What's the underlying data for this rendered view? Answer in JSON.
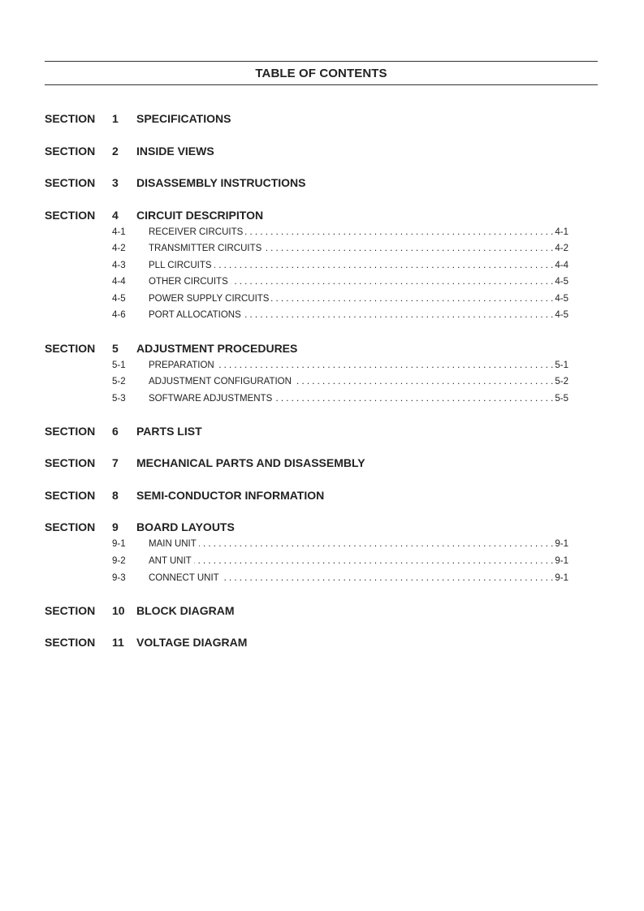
{
  "title": "TABLE OF CONTENTS",
  "section_word": "SECTION",
  "sections": [
    {
      "num": "1",
      "title": "SPECIFICATIONS",
      "items": []
    },
    {
      "num": "2",
      "title": "INSIDE VIEWS",
      "items": []
    },
    {
      "num": "3",
      "title": "DISASSEMBLY INSTRUCTIONS",
      "items": []
    },
    {
      "num": "4",
      "title": "CIRCUIT DESCRIPITON",
      "items": [
        {
          "num": "4-1",
          "title": "RECEIVER CIRCUITS",
          "page": "4-1"
        },
        {
          "num": "4-2",
          "title": "TRANSMITTER CIRCUITS",
          "page": "4-2"
        },
        {
          "num": "4-3",
          "title": "PLL CIRCUITS",
          "page": "4-4"
        },
        {
          "num": "4-4",
          "title": "OTHER CIRCUITS",
          "page": "4-5"
        },
        {
          "num": "4-5",
          "title": "POWER SUPPLY CIRCUITS",
          "page": "4-5"
        },
        {
          "num": "4-6",
          "title": "PORT ALLOCATIONS",
          "page": "4-5"
        }
      ]
    },
    {
      "num": "5",
      "title": "ADJUSTMENT PROCEDURES",
      "items": [
        {
          "num": "5-1",
          "title": "PREPARATION",
          "page": "5-1"
        },
        {
          "num": "5-2",
          "title": "ADJUSTMENT CONFIGURATION",
          "page": "5-2"
        },
        {
          "num": "5-3",
          "title": "SOFTWARE ADJUSTMENTS",
          "page": "5-5"
        }
      ]
    },
    {
      "num": "6",
      "title": "PARTS LIST",
      "items": []
    },
    {
      "num": "7",
      "title": "MECHANICAL PARTS AND DISASSEMBLY",
      "items": []
    },
    {
      "num": "8",
      "title": "SEMI-CONDUCTOR INFORMATION",
      "items": []
    },
    {
      "num": "9",
      "title": "BOARD LAYOUTS",
      "items": [
        {
          "num": "9-1",
          "title": "MAIN UNIT",
          "page": "9-1"
        },
        {
          "num": "9-2",
          "title": "ANT UNIT",
          "page": "9-1"
        },
        {
          "num": "9-3",
          "title": "CONNECT UNIT",
          "page": "9-1"
        }
      ]
    },
    {
      "num": "10",
      "title": "BLOCK DIAGRAM",
      "items": []
    },
    {
      "num": "11",
      "title": "VOLTAGE DIAGRAM",
      "items": []
    }
  ]
}
